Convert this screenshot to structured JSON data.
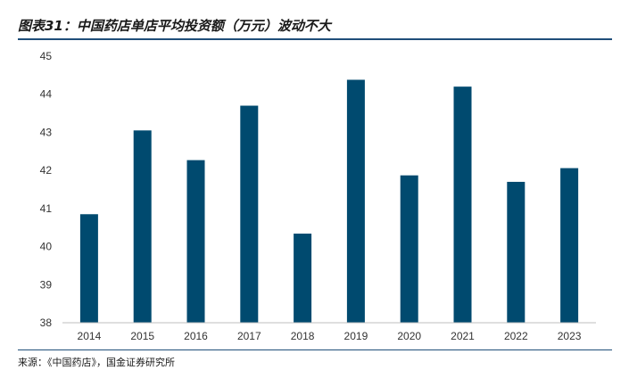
{
  "title": "图表31：中国药店单店平均投资额（万元）波动不大",
  "source": "来源：《中国药店》，国金证券研究所",
  "chart_data": {
    "type": "bar",
    "categories": [
      "2014",
      "2015",
      "2016",
      "2017",
      "2018",
      "2019",
      "2020",
      "2021",
      "2022",
      "2023"
    ],
    "values": [
      40.85,
      43.05,
      42.27,
      43.7,
      40.34,
      44.38,
      41.87,
      44.2,
      41.7,
      42.06
    ],
    "ylim": [
      38,
      45
    ],
    "yticks": [
      38,
      39,
      40,
      41,
      42,
      43,
      44,
      45
    ],
    "bar_color": "#004a6f",
    "axis_color": "#bfbfbf",
    "grid": false,
    "legend": "none"
  }
}
